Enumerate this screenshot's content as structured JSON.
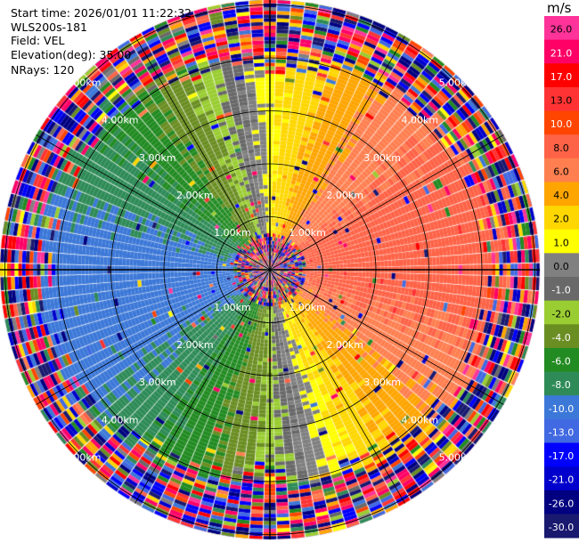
{
  "info": {
    "start_time": "Start time: 2026/01/01 11:22:32",
    "instrument": "WLS200s-181",
    "field": "Field: VEL",
    "elevation": "Elevation(deg): 35.00",
    "nrays": "NRays: 120"
  },
  "chart_data": {
    "type": "heatmap",
    "projection": "polar-ppi",
    "field": "VEL",
    "nrays": 120,
    "max_range_km": 5.2,
    "range_rings_km": [
      1.0,
      2.0,
      3.0,
      4.0,
      5.0
    ],
    "ring_labels": [
      "1.00km",
      "2.00km",
      "3.00km",
      "4.00km",
      "5.00km"
    ],
    "velocity_pattern": {
      "description": "dipole radial wind field",
      "negative_side": "west (blue/green)",
      "positive_side": "east (orange/yellow)",
      "clean_range_km": [
        0.6,
        3.6
      ]
    },
    "colorbar": {
      "unit": "m/s",
      "ticks": [
        "26.0",
        "21.0",
        "17.0",
        "13.0",
        "10.0",
        "8.0",
        "6.0",
        "4.0",
        "2.0",
        "1.0",
        "0.0",
        "-1.0",
        "-2.0",
        "-4.0",
        "-6.0",
        "-8.0",
        "-10.0",
        "-13.0",
        "-17.0",
        "-21.0",
        "-26.0",
        "-30.0"
      ],
      "colors": [
        "#ff3399",
        "#ff0066",
        "#ff0000",
        "#ff3333",
        "#ff4500",
        "#ff6347",
        "#ff7f50",
        "#ffa500",
        "#ffd700",
        "#ffff00",
        "#808080",
        "#696969",
        "#9acd32",
        "#6b8e23",
        "#228b22",
        "#2e8b57",
        "#3c78d8",
        "#4169e1",
        "#0000ff",
        "#0000cd",
        "#000080",
        "#191970"
      ]
    }
  }
}
